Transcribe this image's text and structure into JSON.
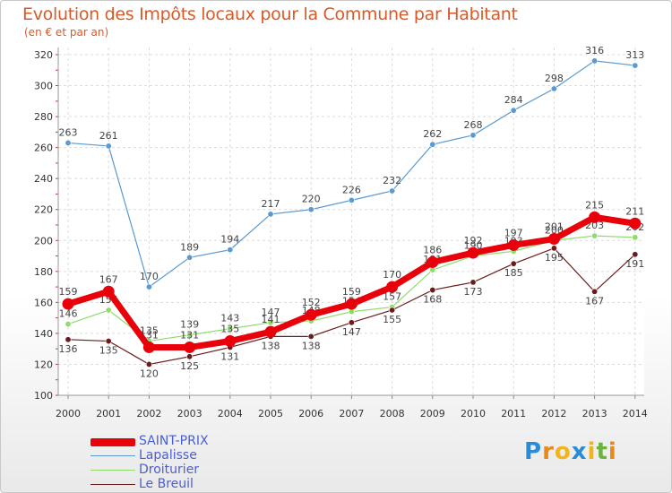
{
  "title": "Evolution des Impôts locaux pour la Commune par Habitant",
  "subtitle": "(en € et par an)",
  "brand": {
    "letters": [
      "P",
      "r",
      "o",
      "x",
      "i",
      "t",
      "i"
    ],
    "colors": [
      "#2a8bd6",
      "#e88a1a",
      "#f2b31c",
      "#2a8bd6",
      "#f2b31c",
      "#6cb33f",
      "#e88a1a"
    ]
  },
  "chart_data": {
    "type": "line",
    "x": [
      "2000",
      "2001",
      "2002",
      "2003",
      "2004",
      "2005",
      "2006",
      "2007",
      "2008",
      "2009",
      "2010",
      "2011",
      "2012",
      "2013",
      "2014"
    ],
    "ylim": [
      100,
      320
    ],
    "yticks": [
      "100",
      "120",
      "140",
      "160",
      "180",
      "200",
      "220",
      "240",
      "260",
      "280",
      "300",
      "320"
    ],
    "grid": true,
    "legend_position": "bottom-left",
    "series": [
      {
        "name": "SAINT-PRIX",
        "color": "#e8000a",
        "values": [
          159,
          167,
          131,
          131,
          135,
          141,
          152,
          159,
          170,
          186,
          192,
          197,
          201,
          215,
          211
        ]
      },
      {
        "name": "Lapalisse",
        "color": "#5a9ad0",
        "values": [
          263,
          261,
          170,
          189,
          194,
          217,
          220,
          226,
          232,
          262,
          268,
          284,
          298,
          316,
          313
        ]
      },
      {
        "name": "Droiturier",
        "color": "#8fdc6a",
        "values": [
          146,
          155,
          135,
          139,
          143,
          147,
          148,
          154,
          157,
          181,
          190,
          193,
          200,
          203,
          202
        ]
      },
      {
        "name": "Le Breuil",
        "color": "#6b1d1d",
        "values": [
          136,
          135,
          120,
          125,
          131,
          138,
          138,
          147,
          155,
          168,
          173,
          185,
          195,
          167,
          191
        ]
      }
    ]
  }
}
